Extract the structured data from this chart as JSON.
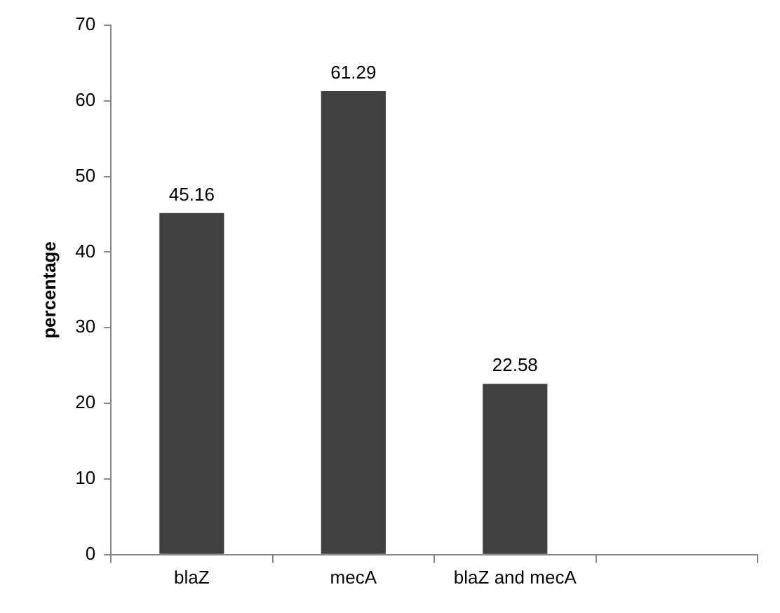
{
  "chart_data": {
    "type": "bar",
    "ylabel": "percentage",
    "categories": [
      "blaZ",
      "mecA",
      "blaZ and mecA",
      null
    ],
    "values": [
      45.16,
      61.29,
      22.58,
      null
    ],
    "color": "#404040",
    "ylim": [
      0,
      70
    ],
    "yticks": [
      0,
      10,
      20,
      30,
      40,
      50,
      60,
      70
    ],
    "grid": false,
    "legend": false,
    "data_labels": true
  }
}
